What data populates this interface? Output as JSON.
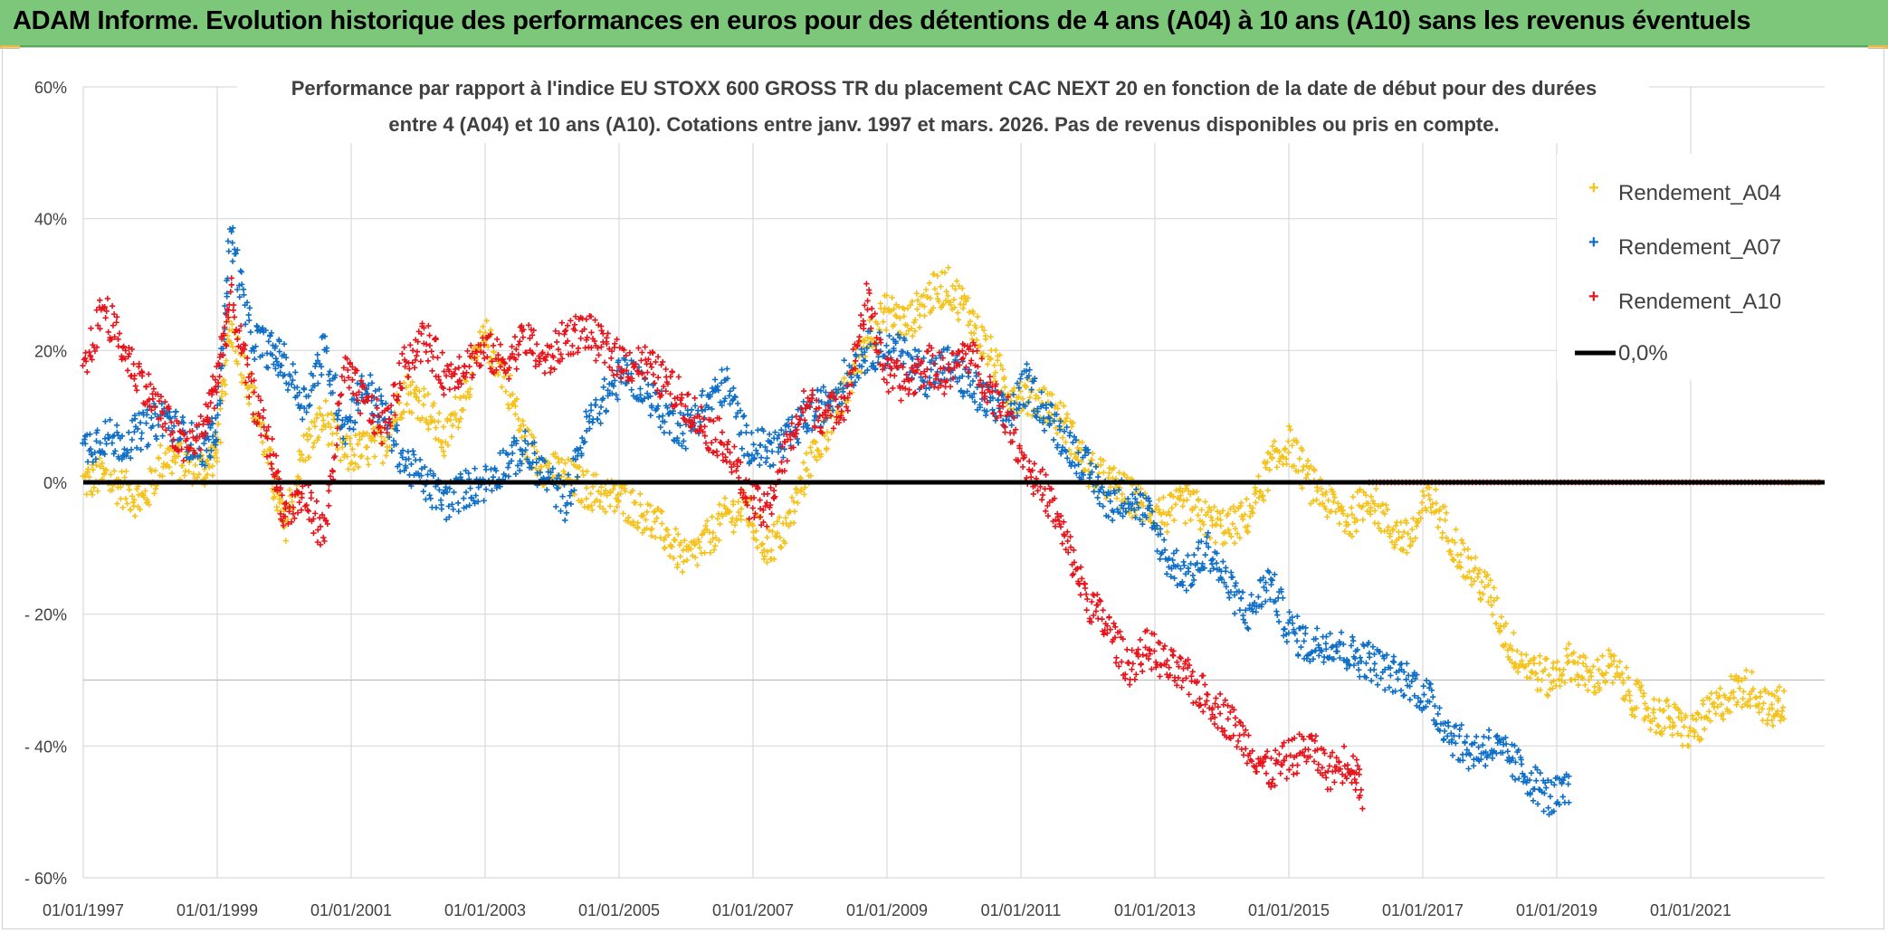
{
  "banner": {
    "title": "ADAM Informe. Evolution historique des performances en euros pour des détentions de 4 ans (A04) à 10 ans (A10) sans les revenus éventuels"
  },
  "chart_data": {
    "type": "scatter",
    "title_line1": "Performance  par rapport à l'indice EU STOXX 600 GROSS TR  du placement CAC NEXT 20 en fonction de la date de début pour des durées",
    "title_line2": "entre 4 (A04) et 10 ans (A10). Cotations entre janv. 1997 et mars. 2026. Pas de revenus disponibles ou pris en compte.",
    "xlim": [
      1997.0,
      2023.0
    ],
    "ylim": [
      -60,
      60
    ],
    "grid": true,
    "x_tick_values": [
      1997,
      1999,
      2001,
      2003,
      2005,
      2007,
      2009,
      2011,
      2013,
      2015,
      2017,
      2019,
      2021
    ],
    "x_tick_labels": [
      "01/01/1997",
      "01/01/1999",
      "01/01/2001",
      "01/01/2003",
      "01/01/2005",
      "01/01/2007",
      "01/01/2009",
      "01/01/2011",
      "01/01/2013",
      "01/01/2015",
      "01/01/2017",
      "01/01/2019",
      "01/01/2021"
    ],
    "y_tick_values": [
      60,
      40,
      20,
      0,
      -20,
      -40,
      -60
    ],
    "y_tick_labels": [
      "60%",
      "40%",
      "20%",
      "0%",
      "- 20%",
      "- 40%",
      "- 60%"
    ],
    "legend_position": "top-right",
    "legend": {
      "a04": "Rendement_A04",
      "a07": "Rendement_A07",
      "a10": "Rendement_A10",
      "zero": "0,0%"
    },
    "colors": {
      "a04": "#f5c21b",
      "a07": "#0f6fc6",
      "a10": "#e8141c",
      "zero": "#000000",
      "grid": "#d9d9d9",
      "axis_text": "#404040"
    },
    "zero_line": 0,
    "series": [
      {
        "name": "Rendement_A04",
        "x": [
          1997.0,
          1997.3,
          1997.6,
          1997.9,
          1998.2,
          1998.5,
          1998.8,
          1999.0,
          1999.2,
          1999.5,
          1999.8,
          2000.0,
          2000.3,
          2000.6,
          2000.9,
          2001.2,
          2001.5,
          2001.8,
          2002.1,
          2002.4,
          2002.7,
          2003.0,
          2003.3,
          2003.6,
          2003.9,
          2004.2,
          2004.5,
          2004.8,
          2005.1,
          2005.4,
          2005.7,
          2006.0,
          2006.3,
          2006.6,
          2006.9,
          2007.2,
          2007.5,
          2007.8,
          2008.1,
          2008.4,
          2008.7,
          2009.0,
          2009.3,
          2009.6,
          2009.9,
          2010.2,
          2010.5,
          2010.8,
          2011.1,
          2011.4,
          2011.7,
          2012.0,
          2012.3,
          2012.6,
          2012.9,
          2013.2,
          2013.5,
          2013.8,
          2014.1,
          2014.4,
          2014.7,
          2015.0,
          2015.3,
          2015.6,
          2015.9,
          2016.2,
          2016.5,
          2016.8,
          2017.1,
          2017.4,
          2017.7,
          2018.0,
          2018.3,
          2018.6,
          2018.9,
          2019.2,
          2019.5,
          2019.8,
          2020.1,
          2020.4,
          2020.7,
          2021.0,
          2021.3,
          2021.6,
          2021.9,
          2022.2,
          2022.4
        ],
        "values": [
          0,
          1,
          -1,
          -3,
          4,
          3,
          2,
          5,
          24,
          14,
          2,
          -7,
          5,
          10,
          4,
          5,
          6,
          14,
          12,
          6,
          14,
          22,
          16,
          6,
          2,
          1,
          -1,
          -2,
          -3,
          -5,
          -8,
          -12,
          -9,
          -5,
          -4,
          -10,
          -7,
          2,
          8,
          14,
          22,
          26,
          24,
          28,
          30,
          26,
          20,
          14,
          13,
          12,
          8,
          2,
          0,
          -2,
          -4,
          -5,
          -3,
          -6,
          -7,
          -5,
          2,
          6,
          0,
          -3,
          -6,
          -2,
          -7,
          -9,
          -2,
          -8,
          -13,
          -17,
          -25,
          -28,
          -30,
          -27,
          -30,
          -28,
          -32,
          -35,
          -36,
          -38,
          -35,
          -32,
          -31,
          -35,
          -33
        ]
      },
      {
        "name": "Rendement_A07",
        "x": [
          1997.0,
          1997.3,
          1997.6,
          1997.9,
          1998.2,
          1998.5,
          1998.8,
          1999.0,
          1999.2,
          1999.5,
          1999.8,
          2000.0,
          2000.3,
          2000.6,
          2000.9,
          2001.2,
          2001.5,
          2001.8,
          2002.1,
          2002.4,
          2002.7,
          2003.0,
          2003.3,
          2003.6,
          2003.9,
          2004.2,
          2004.5,
          2004.8,
          2005.1,
          2005.4,
          2005.7,
          2006.0,
          2006.3,
          2006.6,
          2006.9,
          2007.2,
          2007.5,
          2007.8,
          2008.1,
          2008.4,
          2008.7,
          2009.0,
          2009.3,
          2009.6,
          2009.9,
          2010.2,
          2010.5,
          2010.8,
          2011.1,
          2011.4,
          2011.7,
          2012.0,
          2012.3,
          2012.6,
          2012.9,
          2013.2,
          2013.5,
          2013.8,
          2014.1,
          2014.4,
          2014.7,
          2015.0,
          2015.3,
          2015.6,
          2015.9,
          2016.2,
          2016.5,
          2016.8,
          2017.1,
          2017.4,
          2017.7,
          2018.0,
          2018.3,
          2018.6,
          2018.9,
          2019.2
        ],
        "values": [
          5,
          7,
          6,
          8,
          10,
          7,
          5,
          8,
          38,
          22,
          20,
          18,
          12,
          20,
          8,
          15,
          10,
          3,
          0,
          -3,
          -1,
          0,
          3,
          5,
          1,
          -3,
          8,
          13,
          17,
          14,
          10,
          8,
          12,
          15,
          6,
          5,
          6,
          10,
          12,
          16,
          20,
          20,
          19,
          16,
          18,
          15,
          12,
          10,
          15,
          10,
          6,
          2,
          -3,
          -2,
          -5,
          -12,
          -14,
          -10,
          -16,
          -20,
          -15,
          -22,
          -25,
          -24,
          -26,
          -27,
          -29,
          -30,
          -33,
          -38,
          -41,
          -40,
          -42,
          -45,
          -48,
          -47
        ]
      },
      {
        "name": "Rendement_A10",
        "x": [
          1997.0,
          1997.3,
          1997.6,
          1997.9,
          1998.2,
          1998.5,
          1998.8,
          1999.0,
          1999.2,
          1999.5,
          1999.8,
          2000.0,
          2000.3,
          2000.6,
          2000.9,
          2001.2,
          2001.5,
          2001.8,
          2002.1,
          2002.4,
          2002.7,
          2003.0,
          2003.3,
          2003.6,
          2003.9,
          2004.2,
          2004.5,
          2004.8,
          2005.1,
          2005.4,
          2005.7,
          2006.0,
          2006.3,
          2006.6,
          2006.9,
          2007.2,
          2007.5,
          2007.8,
          2008.1,
          2008.4,
          2008.7,
          2009.0,
          2009.3,
          2009.6,
          2009.9,
          2010.2,
          2010.5,
          2010.8,
          2011.1,
          2011.4,
          2011.7,
          2012.0,
          2012.3,
          2012.6,
          2012.9,
          2013.2,
          2013.5,
          2013.8,
          2014.1,
          2014.4,
          2014.7,
          2015.0,
          2015.3,
          2015.6,
          2015.9,
          2016.1
        ],
        "values": [
          16,
          27,
          20,
          15,
          10,
          5,
          8,
          16,
          28,
          14,
          5,
          -5,
          -2,
          -8,
          17,
          12,
          8,
          18,
          22,
          16,
          18,
          20,
          18,
          22,
          18,
          22,
          23,
          20,
          18,
          18,
          15,
          12,
          8,
          6,
          -2,
          -5,
          5,
          12,
          10,
          13,
          28,
          16,
          15,
          18,
          16,
          20,
          15,
          10,
          2,
          -2,
          -10,
          -18,
          -22,
          -28,
          -25,
          -28,
          -30,
          -33,
          -36,
          -40,
          -44,
          -42,
          -40,
          -44,
          -42,
          -47
        ]
      }
    ]
  }
}
